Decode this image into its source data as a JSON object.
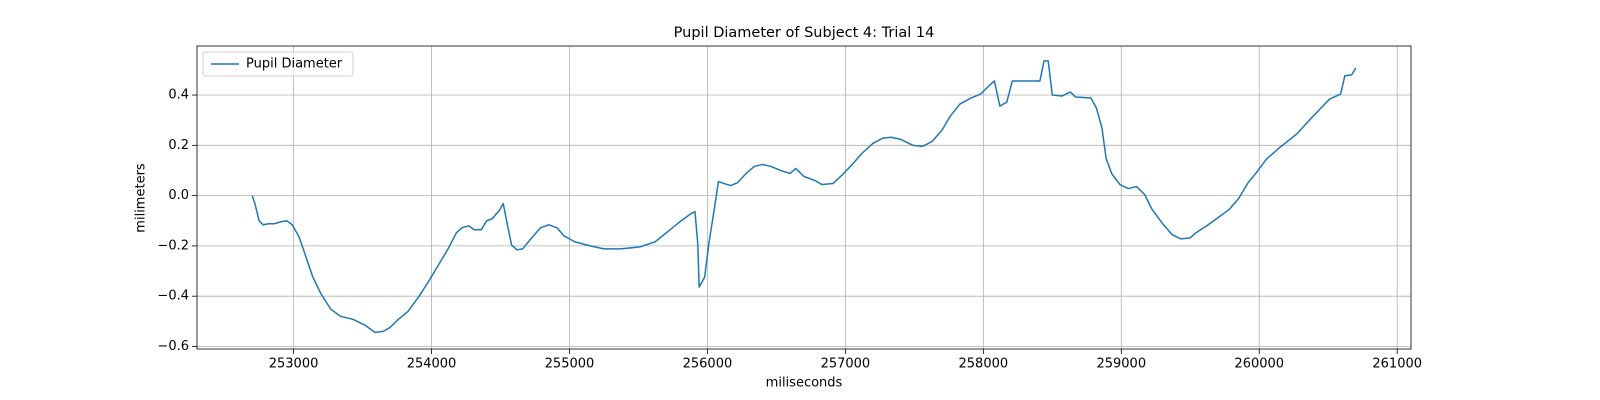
{
  "chart_data": {
    "type": "line",
    "title": "Pupil Diameter of Subject 4: Trial 14",
    "x_label": "miliseconds",
    "y_label": "milimeters",
    "x": [
      252700,
      252720,
      252750,
      252780,
      252820,
      252860,
      252910,
      252950,
      252990,
      253040,
      253090,
      253140,
      253200,
      253270,
      253340,
      253430,
      253520,
      253590,
      253650,
      253700,
      253760,
      253830,
      253910,
      253980,
      254050,
      254120,
      254180,
      254220,
      254270,
      254310,
      254360,
      254400,
      254440,
      254490,
      254520,
      254550,
      254580,
      254620,
      254660,
      254720,
      254790,
      254850,
      254910,
      254960,
      255040,
      255150,
      255250,
      255370,
      255510,
      255620,
      255720,
      255800,
      255880,
      255910,
      255930,
      255940,
      255980,
      256010,
      256050,
      256080,
      256120,
      256170,
      256220,
      256280,
      256340,
      256400,
      256460,
      256530,
      256600,
      256640,
      256700,
      256780,
      256830,
      256910,
      256980,
      257050,
      257120,
      257200,
      257270,
      257330,
      257400,
      257490,
      257560,
      257630,
      257700,
      257760,
      257830,
      257910,
      257980,
      258040,
      258080,
      258120,
      258170,
      258210,
      258410,
      258440,
      258470,
      258500,
      258570,
      258630,
      258670,
      258780,
      258820,
      258860,
      258890,
      258930,
      258990,
      259050,
      259110,
      259170,
      259220,
      259300,
      259370,
      259430,
      259500,
      259540,
      259620,
      259700,
      259780,
      259850,
      259920,
      259980,
      260050,
      260150,
      260270,
      260370,
      260440,
      260510,
      260590,
      260620,
      260670,
      260700
    ],
    "series": [
      {
        "name": "Pupil Diameter",
        "color": "#1f77b4",
        "values": [
          0.0,
          -0.032,
          -0.1,
          -0.116,
          -0.112,
          -0.112,
          -0.104,
          -0.1,
          -0.116,
          -0.164,
          -0.244,
          -0.324,
          -0.392,
          -0.452,
          -0.48,
          -0.492,
          -0.516,
          -0.544,
          -0.54,
          -0.524,
          -0.492,
          -0.46,
          -0.4,
          -0.34,
          -0.276,
          -0.212,
          -0.148,
          -0.128,
          -0.12,
          -0.136,
          -0.136,
          -0.1,
          -0.092,
          -0.06,
          -0.032,
          -0.116,
          -0.196,
          -0.216,
          -0.212,
          -0.172,
          -0.128,
          -0.116,
          -0.128,
          -0.16,
          -0.184,
          -0.2,
          -0.212,
          -0.212,
          -0.204,
          -0.184,
          -0.14,
          -0.104,
          -0.072,
          -0.064,
          -0.192,
          -0.364,
          -0.324,
          -0.192,
          -0.052,
          0.056,
          0.048,
          0.04,
          0.052,
          0.088,
          0.116,
          0.124,
          0.116,
          0.1,
          0.088,
          0.108,
          0.076,
          0.06,
          0.044,
          0.048,
          0.084,
          0.124,
          0.168,
          0.208,
          0.228,
          0.232,
          0.224,
          0.2,
          0.196,
          0.216,
          0.26,
          0.316,
          0.364,
          0.388,
          0.404,
          0.436,
          0.456,
          0.356,
          0.372,
          0.456,
          0.456,
          0.536,
          0.536,
          0.4,
          0.396,
          0.412,
          0.392,
          0.388,
          0.348,
          0.268,
          0.148,
          0.088,
          0.044,
          0.028,
          0.036,
          0.004,
          -0.052,
          -0.112,
          -0.156,
          -0.172,
          -0.168,
          -0.148,
          -0.12,
          -0.088,
          -0.056,
          -0.012,
          0.052,
          0.092,
          0.144,
          0.192,
          0.244,
          0.304,
          0.344,
          0.384,
          0.404,
          0.476,
          0.48,
          0.508
        ]
      }
    ],
    "xlim": [
      252300,
      261100
    ],
    "xticks": [
      253000,
      254000,
      255000,
      256000,
      257000,
      258000,
      259000,
      260000,
      261000
    ],
    "ylim": [
      -0.61,
      0.595
    ],
    "yticks": [
      {
        "value": -0.6,
        "label": "−0.6"
      },
      {
        "value": -0.4,
        "label": "−0.4"
      },
      {
        "value": -0.2,
        "label": "−0.2"
      },
      {
        "value": 0.0,
        "label": "0.0"
      },
      0.2,
      0.4
    ],
    "grid": true,
    "legend": "upper left"
  }
}
